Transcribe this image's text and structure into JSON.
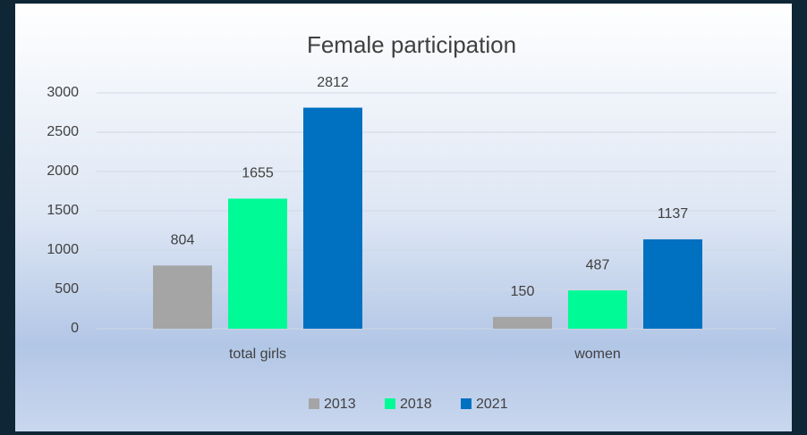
{
  "chart_data": {
    "type": "bar",
    "title": "Female participation",
    "categories": [
      "total girls",
      "women"
    ],
    "series": [
      {
        "name": "2013",
        "color": "#a5a5a5",
        "values": [
          804,
          150
        ]
      },
      {
        "name": "2018",
        "color": "#00fa96",
        "values": [
          1655,
          487
        ]
      },
      {
        "name": "2021",
        "color": "#0070c0",
        "values": [
          2812,
          1137
        ]
      }
    ],
    "ylim": [
      0,
      3000
    ],
    "yticks": [
      0,
      500,
      1000,
      1500,
      2000,
      2500,
      3000
    ],
    "grid": true,
    "legend": "bottom"
  }
}
